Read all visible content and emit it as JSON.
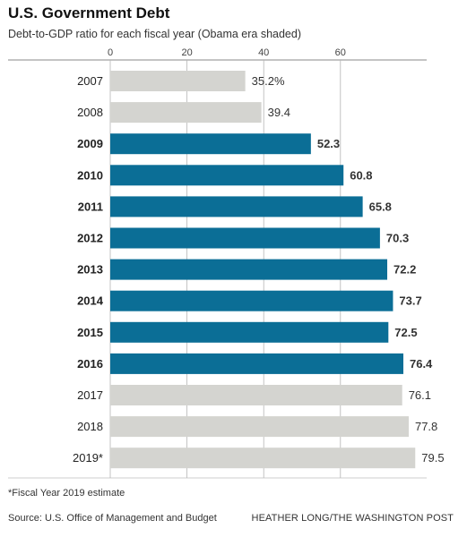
{
  "title": "U.S. Government Debt",
  "subtitle": "Debt-to-GDP ratio for each fiscal year (Obama era shaded)",
  "footnote": "*Fiscal Year 2019 estimate",
  "source": "Source: U.S. Office of Management and Budget",
  "credit": "HEATHER LONG/THE WASHINGTON POST",
  "colors": {
    "highlight": "#0b6e96",
    "other": "#d4d4d0",
    "grid": "#b5b5b5"
  },
  "chart_data": {
    "type": "bar",
    "orientation": "horizontal",
    "categories": [
      "2007",
      "2008",
      "2009",
      "2010",
      "2011",
      "2012",
      "2013",
      "2014",
      "2015",
      "2016",
      "2017",
      "2018",
      "2019*"
    ],
    "values": [
      35.2,
      39.4,
      52.3,
      60.8,
      65.8,
      70.3,
      72.2,
      73.7,
      72.5,
      76.4,
      76.1,
      77.8,
      79.5
    ],
    "value_labels": [
      "35.2%",
      "39.4",
      "52.3",
      "60.8",
      "65.8",
      "70.3",
      "72.2",
      "73.7",
      "72.5",
      "76.4",
      "76.1",
      "77.8",
      "79.5"
    ],
    "highlighted": [
      false,
      false,
      true,
      true,
      true,
      true,
      true,
      true,
      true,
      true,
      false,
      false,
      false
    ],
    "xticks": [
      0,
      20,
      40,
      60
    ],
    "xlim": [
      0,
      82
    ],
    "grid": true,
    "axis_position": "top"
  }
}
